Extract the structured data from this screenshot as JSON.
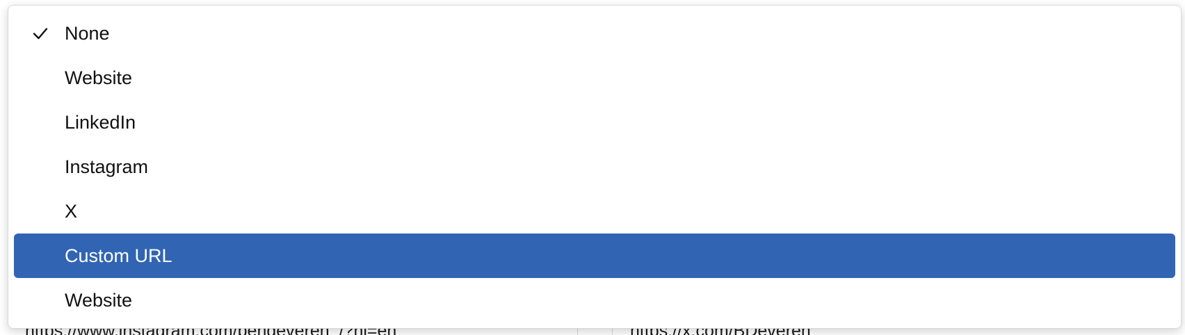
{
  "dropdown": {
    "selected": "None",
    "highlighted": "Custom URL",
    "options": [
      {
        "label": "None",
        "checked": true,
        "highlighted": false
      },
      {
        "label": "Website",
        "checked": false,
        "highlighted": false
      },
      {
        "label": "LinkedIn",
        "checked": false,
        "highlighted": false
      },
      {
        "label": "Instagram",
        "checked": false,
        "highlighted": false
      },
      {
        "label": "X",
        "checked": false,
        "highlighted": false
      },
      {
        "label": "Custom URL",
        "checked": false,
        "highlighted": true
      },
      {
        "label": "Website",
        "checked": false,
        "highlighted": false
      }
    ]
  },
  "underlying": {
    "left_url": "https://www.instagram.com/bendeveren_/?hl=en",
    "right_url": "https://x.com/BDeveren"
  },
  "colors": {
    "highlight": "#3165b3",
    "highlight_text": "#ffffff",
    "text": "#111111"
  },
  "icons": {
    "check": "check-icon"
  }
}
